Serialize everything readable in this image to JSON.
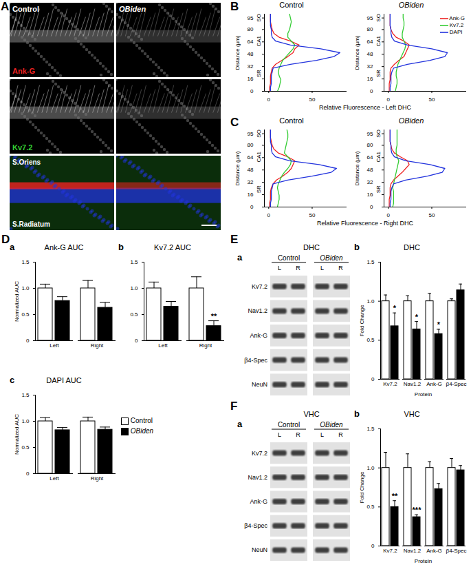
{
  "chart_data": [
    {
      "panel": "B",
      "type": "line",
      "title": "Control",
      "x_label": "Relative Fluorescence - Left DHC",
      "y_label": "Distance (µm)",
      "xlim": [
        -5,
        90
      ],
      "xticks": [
        0,
        50
      ],
      "ylim": [
        0,
        100
      ],
      "yticks": [
        0,
        16,
        32,
        48,
        64,
        80,
        95
      ],
      "y": [
        0,
        5,
        10,
        15,
        20,
        25,
        30,
        35,
        40,
        45,
        50,
        55,
        60,
        65,
        70,
        75,
        80,
        85,
        90,
        95,
        100
      ],
      "layers": [
        {
          "label": "SO",
          "from": 80,
          "to": 100
        },
        {
          "label": "CA1",
          "from": 36,
          "to": 80
        },
        {
          "label": "SR",
          "from": 0,
          "to": 36
        }
      ],
      "series": [
        {
          "name": "Ank-G",
          "color": "#ee2222",
          "values": [
            1,
            1,
            2,
            2,
            2,
            3,
            4,
            8,
            15,
            22,
            28,
            30,
            35,
            25,
            12,
            6,
            4,
            3,
            2,
            2,
            2
          ]
        },
        {
          "name": "Kv7.2",
          "color": "#33cc33",
          "values": [
            10,
            12,
            13,
            14,
            12,
            11,
            12,
            14,
            16,
            20,
            24,
            28,
            30,
            26,
            22,
            22,
            24,
            25,
            26,
            25,
            24
          ]
        },
        {
          "name": "DAPI",
          "color": "#2233dd",
          "values": [
            2,
            2,
            3,
            3,
            3,
            4,
            5,
            25,
            55,
            75,
            82,
            60,
            25,
            8,
            4,
            3,
            3,
            2,
            2,
            2,
            2
          ]
        }
      ]
    },
    {
      "type": "line",
      "title": "OBiden",
      "y_label": "Distance (µm)",
      "legend": "top-right",
      "xlim": [
        -5,
        90
      ],
      "xticks": [
        0,
        50
      ],
      "ylim": [
        0,
        100
      ],
      "yticks": [
        0,
        16,
        32,
        48,
        64,
        80,
        95
      ],
      "y": [
        0,
        5,
        10,
        15,
        20,
        25,
        30,
        35,
        40,
        45,
        50,
        55,
        60,
        65,
        70,
        75,
        80,
        85,
        90,
        95,
        100
      ],
      "layers": [
        {
          "label": "SO",
          "from": 80,
          "to": 100
        },
        {
          "label": "CA1",
          "from": 36,
          "to": 80
        },
        {
          "label": "SR",
          "from": 0,
          "to": 36
        }
      ],
      "series": [
        {
          "name": "Ank-G",
          "color": "#ee2222",
          "values": [
            1,
            1,
            1,
            2,
            2,
            2,
            3,
            7,
            12,
            18,
            20,
            22,
            24,
            18,
            9,
            5,
            3,
            2,
            2,
            2,
            2
          ]
        },
        {
          "name": "Kv7.2",
          "color": "#33cc33",
          "values": [
            8,
            9,
            10,
            10,
            9,
            9,
            10,
            11,
            13,
            15,
            17,
            19,
            20,
            18,
            16,
            16,
            17,
            18,
            18,
            17,
            17
          ]
        },
        {
          "name": "DAPI",
          "color": "#2233dd",
          "values": [
            2,
            2,
            3,
            3,
            3,
            4,
            6,
            22,
            48,
            65,
            68,
            50,
            22,
            7,
            4,
            3,
            3,
            2,
            2,
            2,
            2
          ]
        }
      ]
    },
    {
      "panel": "C",
      "type": "line",
      "title": "Control",
      "x_label": "Relative Fluorescence - Right DHC",
      "y_label": "Distance (µm)",
      "xlim": [
        -5,
        90
      ],
      "xticks": [
        0,
        50
      ],
      "ylim": [
        0,
        100
      ],
      "yticks": [
        0,
        16,
        32,
        48,
        64,
        80,
        95
      ],
      "y": [
        0,
        5,
        10,
        15,
        20,
        25,
        30,
        35,
        40,
        45,
        50,
        55,
        60,
        65,
        70,
        75,
        80,
        85,
        90,
        95,
        100
      ],
      "layers": [
        {
          "label": "SO",
          "from": 80,
          "to": 100
        },
        {
          "label": "CA1",
          "from": 36,
          "to": 80
        },
        {
          "label": "SR",
          "from": 0,
          "to": 36
        }
      ],
      "series": [
        {
          "name": "Ank-G",
          "color": "#ee2222",
          "values": [
            1,
            1,
            2,
            2,
            2,
            3,
            5,
            9,
            16,
            22,
            26,
            28,
            30,
            22,
            11,
            6,
            4,
            3,
            2,
            2,
            2
          ]
        },
        {
          "name": "Kv7.2",
          "color": "#33cc33",
          "values": [
            10,
            11,
            12,
            12,
            11,
            10,
            11,
            13,
            15,
            18,
            22,
            25,
            26,
            22,
            18,
            19,
            20,
            21,
            22,
            22,
            21
          ]
        },
        {
          "name": "DAPI",
          "color": "#2233dd",
          "values": [
            2,
            2,
            3,
            3,
            3,
            4,
            5,
            22,
            50,
            72,
            78,
            58,
            24,
            8,
            4,
            3,
            3,
            2,
            2,
            2,
            2
          ]
        }
      ]
    },
    {
      "type": "line",
      "title": "OBiden",
      "y_label": "Distance (µm)",
      "xlim": [
        -5,
        90
      ],
      "xticks": [
        0,
        50
      ],
      "ylim": [
        0,
        100
      ],
      "yticks": [
        0,
        16,
        32,
        48,
        64,
        80,
        95
      ],
      "y": [
        0,
        5,
        10,
        15,
        20,
        25,
        30,
        35,
        40,
        45,
        50,
        55,
        60,
        65,
        70,
        75,
        80,
        85,
        90,
        95,
        100
      ],
      "layers": [
        {
          "label": "SO",
          "from": 80,
          "to": 100
        },
        {
          "label": "CA1",
          "from": 36,
          "to": 80
        },
        {
          "label": "SR",
          "from": 0,
          "to": 36
        }
      ],
      "series": [
        {
          "name": "Ank-G",
          "color": "#ee2222",
          "values": [
            1,
            1,
            1,
            2,
            2,
            2,
            3,
            6,
            11,
            16,
            20,
            24,
            22,
            14,
            7,
            4,
            3,
            2,
            2,
            2,
            2
          ]
        },
        {
          "name": "Kv7.2",
          "color": "#33cc33",
          "values": [
            5,
            6,
            6,
            6,
            6,
            5,
            6,
            7,
            8,
            9,
            10,
            11,
            12,
            10,
            9,
            9,
            10,
            10,
            10,
            10,
            10
          ]
        },
        {
          "name": "DAPI",
          "color": "#2233dd",
          "values": [
            2,
            2,
            3,
            3,
            3,
            4,
            6,
            20,
            45,
            62,
            65,
            48,
            20,
            7,
            4,
            3,
            3,
            2,
            2,
            2,
            2
          ]
        }
      ]
    },
    {
      "panel": "D",
      "subpanel": "a",
      "type": "bar",
      "title": "Ank-G AUC",
      "y_label": "Normalized AUC",
      "categories": [
        "Left",
        "Right"
      ],
      "ylim": [
        0,
        1.5
      ],
      "yticks": [
        0,
        0.5,
        {
          "value": 1,
          "label": "1.0"
        },
        1.5
      ],
      "series": [
        {
          "name": "Control",
          "color": "#ffffff",
          "values": [
            1.0,
            1.0
          ],
          "errors": [
            0.08,
            0.15
          ]
        },
        {
          "name": "OBiden",
          "color": "#000000",
          "values": [
            0.76,
            0.63
          ],
          "errors": [
            0.08,
            0.1
          ]
        }
      ]
    },
    {
      "subpanel": "b",
      "type": "bar",
      "title": "Kv7.2 AUC",
      "categories": [
        "Left",
        "Right"
      ],
      "ylim": [
        0,
        1.5
      ],
      "yticks": [
        0,
        0.5,
        {
          "value": 1,
          "label": "1.0"
        },
        1.5
      ],
      "annotations": [
        {
          "category": "Right",
          "series": "OBiden",
          "text": "**"
        }
      ],
      "series": [
        {
          "name": "Control",
          "color": "#ffffff",
          "values": [
            1.0,
            1.0
          ],
          "errors": [
            0.12,
            0.22
          ]
        },
        {
          "name": "OBiden",
          "color": "#000000",
          "values": [
            0.65,
            0.28
          ],
          "errors": [
            0.1,
            0.1
          ]
        }
      ]
    },
    {
      "subpanel": "c",
      "type": "bar",
      "title": "DAPI AUC",
      "y_label": "Normalized AUC",
      "legend": "right",
      "categories": [
        "Left",
        "Right"
      ],
      "ylim": [
        0,
        1.5
      ],
      "yticks": [
        0,
        0.5,
        {
          "value": 1,
          "label": "1.0"
        },
        1.5
      ],
      "series": [
        {
          "name": "Control",
          "color": "#ffffff",
          "values": [
            1.0,
            1.0
          ],
          "errors": [
            0.07,
            0.08
          ]
        },
        {
          "name": "OBiden",
          "color": "#000000",
          "values": [
            0.83,
            0.84
          ],
          "errors": [
            0.05,
            0.05
          ]
        }
      ]
    },
    {
      "subpanel": "b",
      "type": "bar",
      "title": "DHC",
      "x_label": "Protein",
      "y_label": "Fold Change",
      "categories": [
        "Kv7.2",
        "Nav1.2",
        "Ank-G",
        "β4-Spec"
      ],
      "ylim": [
        0,
        1.5
      ],
      "yticks": [
        0,
        0.5,
        {
          "value": 1,
          "label": "1.0"
        },
        1.5
      ],
      "annotations": [
        {
          "category": "Kv7.2",
          "series": "OBiden",
          "text": "*"
        },
        {
          "category": "Nav1.2",
          "series": "OBiden",
          "text": "*"
        },
        {
          "category": "Ank-G",
          "series": "OBiden",
          "text": "*"
        }
      ],
      "series": [
        {
          "name": "Control",
          "color": "#ffffff",
          "values": [
            1.0,
            1.0,
            1.0,
            1.0
          ],
          "errors": [
            0.08,
            0.07,
            0.1,
            0.03
          ]
        },
        {
          "name": "OBiden",
          "color": "#000000",
          "values": [
            0.68,
            0.64,
            0.58,
            1.14
          ],
          "errors": [
            0.17,
            0.1,
            0.06,
            0.08
          ]
        }
      ]
    },
    {
      "subpanel": "b",
      "type": "bar",
      "title": "VHC",
      "x_label": "Protein",
      "y_label": "Fold Change",
      "categories": [
        "Kv7.2",
        "Nav1.2",
        "Ank-G",
        "β4-Spec"
      ],
      "ylim": [
        0,
        1.5
      ],
      "yticks": [
        0,
        0.5,
        {
          "value": 1,
          "label": "1.0"
        },
        1.5
      ],
      "annotations": [
        {
          "category": "Kv7.2",
          "series": "OBiden",
          "text": "**"
        },
        {
          "category": "Nav1.2",
          "series": "OBiden",
          "text": "***"
        }
      ],
      "series": [
        {
          "name": "Control",
          "color": "#ffffff",
          "values": [
            1.0,
            1.0,
            1.0,
            1.0
          ],
          "errors": [
            0.2,
            0.18,
            0.08,
            0.12
          ]
        },
        {
          "name": "OBiden",
          "color": "#000000",
          "values": [
            0.5,
            0.37,
            0.73,
            0.97
          ],
          "errors": [
            0.08,
            0.03,
            0.07,
            0.06
          ]
        }
      ]
    }
  ],
  "micrograph": {
    "panel": "A",
    "columns": [
      "Control",
      "OBiden"
    ],
    "rows": [
      "Ank-G",
      "Kv7.2"
    ],
    "regions": [
      "S.Oriens",
      "S.Radiatum"
    ]
  },
  "blots": [
    {
      "panel": "E",
      "subpanel": "a",
      "title": "DHC",
      "groups": [
        "Control",
        "OBiden"
      ],
      "lanes": [
        "L",
        "R"
      ],
      "proteins": [
        "Kv7.2",
        "Nav1.2",
        "Ank-G",
        "β4-Spec",
        "NeuN"
      ]
    },
    {
      "panel": "F",
      "subpanel": "a",
      "title": "VHC",
      "groups": [
        "Control",
        "OBiden"
      ],
      "lanes": [
        "L",
        "R"
      ],
      "proteins": [
        "Kv7.2",
        "Nav1.2",
        "Ank-G",
        "β4-Spec",
        "NeuN"
      ]
    }
  ]
}
